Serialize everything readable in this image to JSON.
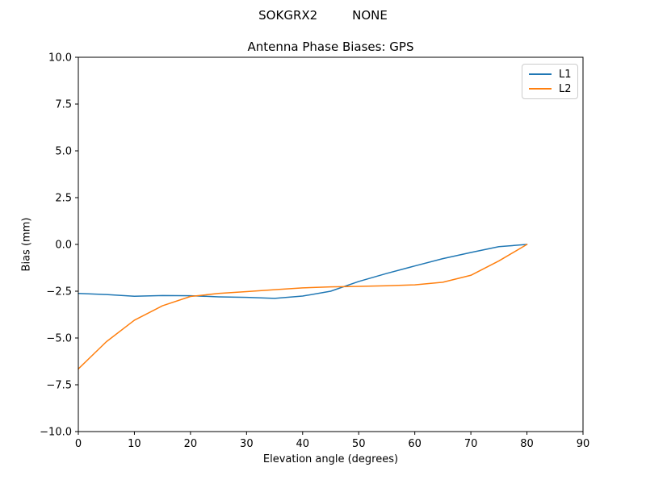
{
  "chart_data": {
    "type": "line",
    "suptitle": "SOKGRX2         NONE",
    "title": "Antenna Phase Biases: GPS",
    "xlabel": "Elevation angle (degrees)",
    "ylabel": "Bias (mm)",
    "xlim": [
      0,
      90
    ],
    "ylim": [
      -10,
      10
    ],
    "xticks": [
      0,
      10,
      20,
      30,
      40,
      50,
      60,
      70,
      80,
      90
    ],
    "yticks": [
      -10.0,
      -7.5,
      -5.0,
      -2.5,
      0.0,
      2.5,
      5.0,
      7.5,
      10.0
    ],
    "grid": false,
    "legend_position": "upper right",
    "x": [
      0,
      5,
      10,
      15,
      20,
      25,
      30,
      35,
      40,
      45,
      50,
      55,
      60,
      65,
      70,
      75,
      80
    ],
    "series": [
      {
        "name": "L1",
        "color": "#1f77b4",
        "values": [
          -2.62,
          -2.68,
          -2.77,
          -2.73,
          -2.74,
          -2.8,
          -2.83,
          -2.88,
          -2.76,
          -2.5,
          -1.98,
          -1.55,
          -1.15,
          -0.76,
          -0.43,
          -0.12,
          0.0
        ]
      },
      {
        "name": "L2",
        "color": "#ff7f0e",
        "values": [
          -6.65,
          -5.2,
          -4.05,
          -3.28,
          -2.78,
          -2.62,
          -2.52,
          -2.42,
          -2.32,
          -2.27,
          -2.24,
          -2.21,
          -2.16,
          -2.02,
          -1.65,
          -0.88,
          0.0
        ]
      }
    ]
  }
}
